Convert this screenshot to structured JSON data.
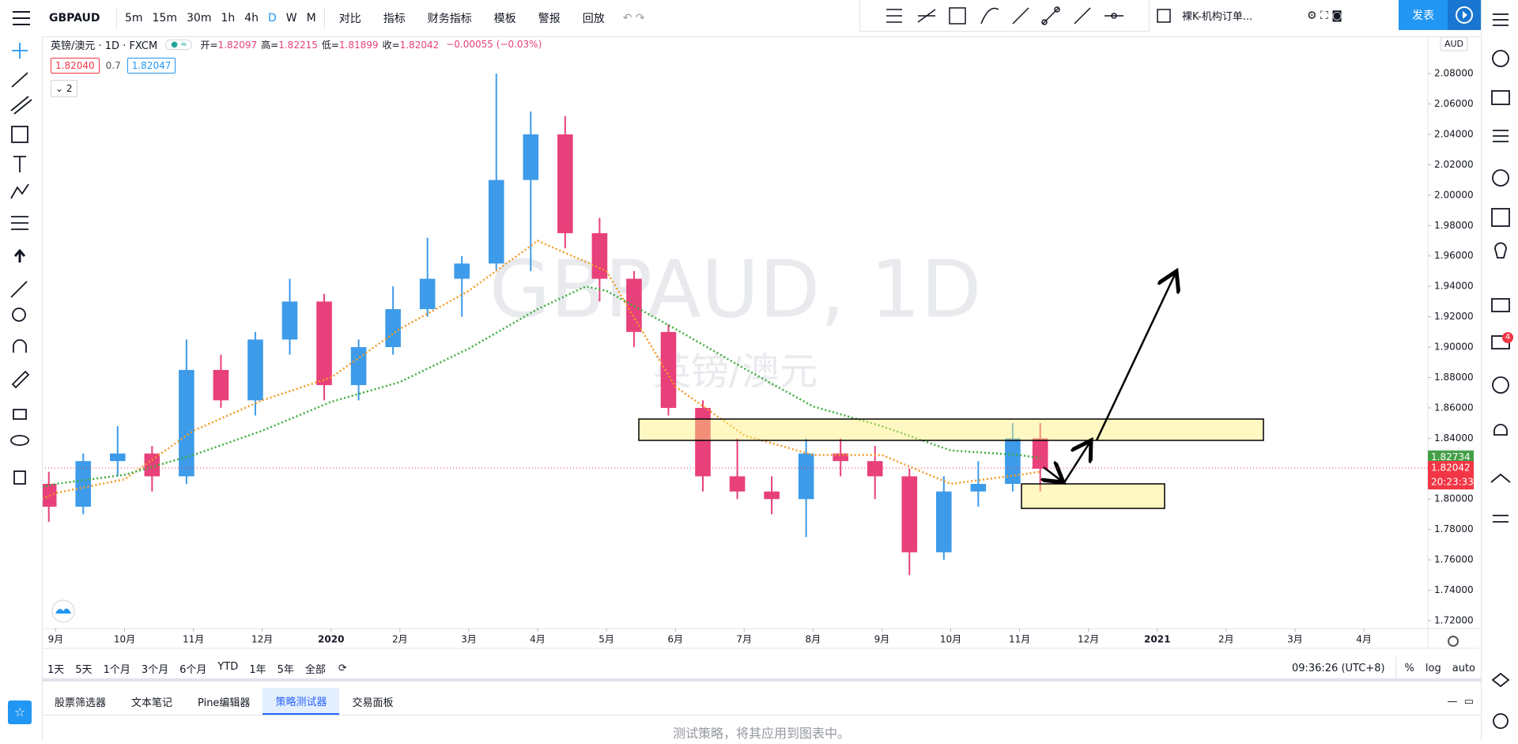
{
  "toolbar": {
    "symbol": "GBPAUD",
    "intervals": [
      "5m",
      "15m",
      "30m",
      "1h",
      "4h",
      "D",
      "W",
      "M"
    ],
    "active_interval": 5,
    "buttons": [
      "对比",
      "指标",
      "财务指标",
      "模板",
      "警报",
      "回放"
    ],
    "layout_name": "裸K-机构订单...",
    "publish": "发表"
  },
  "legend": {
    "title": "英镑/澳元 · 1D · FXCM",
    "ohlc": [
      [
        "开=",
        "1.82097"
      ],
      [
        "高=",
        "1.82215"
      ],
      [
        "低=",
        "1.81899"
      ],
      [
        "收=",
        "1.82042"
      ]
    ],
    "change": "−0.00055 (−0.03%)",
    "bid": "1.82040",
    "spread": "0.7",
    "ask": "1.82047",
    "collapsed_count": "2"
  },
  "watermark": {
    "symbol": "GBPAUD, 1D",
    "name": "英镑/澳元"
  },
  "chart_data": {
    "type": "candlestick",
    "x": [
      -0.1,
      0.4,
      0.9,
      1.4,
      1.9,
      2.4,
      2.9,
      3.4,
      3.9,
      4.4,
      4.9,
      5.4,
      5.9,
      6.4,
      6.9,
      7.4,
      7.9,
      8.4,
      8.9,
      9.4,
      9.9,
      10.4,
      10.9,
      11.4,
      11.9,
      12.4,
      12.9,
      13.4,
      13.9,
      14.3
    ],
    "open": [
      1.81,
      1.795,
      1.825,
      1.83,
      1.815,
      1.885,
      1.865,
      1.905,
      1.93,
      1.875,
      1.9,
      1.925,
      1.945,
      1.955,
      2.01,
      2.04,
      1.975,
      1.945,
      1.91,
      1.86,
      1.815,
      1.805,
      1.8,
      1.83,
      1.825,
      1.815,
      1.765,
      1.805,
      1.81,
      1.84
    ],
    "high": [
      1.818,
      1.83,
      1.848,
      1.835,
      1.905,
      1.895,
      1.91,
      1.945,
      1.935,
      1.905,
      1.94,
      1.972,
      1.96,
      2.08,
      2.055,
      2.052,
      1.985,
      1.95,
      1.915,
      1.865,
      1.84,
      1.815,
      1.84,
      1.84,
      1.835,
      1.82,
      1.815,
      1.825,
      1.85,
      1.85
    ],
    "low": [
      1.785,
      1.79,
      1.815,
      1.805,
      1.81,
      1.86,
      1.855,
      1.895,
      1.865,
      1.865,
      1.895,
      1.92,
      1.92,
      1.95,
      1.95,
      1.965,
      1.93,
      1.9,
      1.855,
      1.805,
      1.8,
      1.79,
      1.775,
      1.815,
      1.8,
      1.75,
      1.76,
      1.795,
      1.805,
      1.805
    ],
    "close": [
      1.795,
      1.825,
      1.83,
      1.815,
      1.885,
      1.865,
      1.905,
      1.93,
      1.875,
      1.9,
      1.925,
      1.945,
      1.955,
      2.01,
      2.04,
      1.975,
      1.945,
      1.91,
      1.86,
      1.815,
      1.805,
      1.8,
      1.83,
      1.825,
      1.815,
      1.765,
      1.805,
      1.81,
      1.84,
      1.82
    ],
    "up_color": "#3d9be9",
    "down_color": "#e8407a",
    "series": [
      {
        "color": "#f59a23",
        "x": [
          -0.2,
          0,
          1,
          2,
          3,
          4,
          5,
          6,
          7,
          8,
          9,
          10,
          11,
          12,
          13,
          14,
          14.3
        ],
        "values": [
          1.8,
          1.804,
          1.813,
          1.845,
          1.865,
          1.88,
          1.912,
          1.937,
          1.97,
          1.95,
          1.874,
          1.842,
          1.829,
          1.829,
          1.81,
          1.816,
          1.818
        ]
      },
      {
        "color": "#3cae3c",
        "x": [
          -0.2,
          0,
          1,
          2,
          3,
          4,
          5,
          6,
          7,
          7.7,
          8,
          9,
          10,
          11,
          12,
          13,
          14,
          14.3
        ],
        "values": [
          1.808,
          1.81,
          1.816,
          1.829,
          1.845,
          1.864,
          1.877,
          1.899,
          1.925,
          1.94,
          1.937,
          1.912,
          1.886,
          1.861,
          1.848,
          1.832,
          1.829,
          1.827
        ]
      }
    ],
    "xlim": [
      -0.2,
      19.93
    ],
    "xticks": [
      {
        "value": 0,
        "label": "9月"
      },
      {
        "value": 1,
        "label": "10月"
      },
      {
        "value": 2,
        "label": "11月"
      },
      {
        "value": 3,
        "label": "12月"
      },
      {
        "value": 4,
        "label": "2020"
      },
      {
        "value": 5,
        "label": "2月"
      },
      {
        "value": 6,
        "label": "3月"
      },
      {
        "value": 7,
        "label": "4月"
      },
      {
        "value": 8,
        "label": "5月"
      },
      {
        "value": 9,
        "label": "6月"
      },
      {
        "value": 10,
        "label": "7月"
      },
      {
        "value": 11,
        "label": "8月"
      },
      {
        "value": 12,
        "label": "9月"
      },
      {
        "value": 13,
        "label": "10月"
      },
      {
        "value": 14,
        "label": "11月"
      },
      {
        "value": 15,
        "label": "12月"
      },
      {
        "value": 16,
        "label": "2021"
      },
      {
        "value": 17,
        "label": "2月"
      },
      {
        "value": 18,
        "label": "3月"
      },
      {
        "value": 19,
        "label": "4月"
      }
    ],
    "ylim": [
      1.7148,
      2.1045
    ],
    "yticks": [
      {
        "value": 1.72,
        "label": "1.72000"
      },
      {
        "value": 1.74,
        "label": "1.74000"
      },
      {
        "value": 1.76,
        "label": "1.76000"
      },
      {
        "value": 1.78,
        "label": "1.78000"
      },
      {
        "value": 1.8,
        "label": "1.80000"
      },
      {
        "value": 1.82,
        "label": "1.82000"
      },
      {
        "value": 1.84,
        "label": "1.84000"
      },
      {
        "value": 1.86,
        "label": "1.86000"
      },
      {
        "value": 1.88,
        "label": "1.88000"
      },
      {
        "value": 1.9,
        "label": "1.90000"
      },
      {
        "value": 1.92,
        "label": "1.92000"
      },
      {
        "value": 1.94,
        "label": "1.94000"
      },
      {
        "value": 1.96,
        "label": "1.96000"
      },
      {
        "value": 1.98,
        "label": "1.98000"
      },
      {
        "value": 2.0,
        "label": "2.00000"
      },
      {
        "value": 2.02,
        "label": "2.02000"
      },
      {
        "value": 2.04,
        "label": "2.04000"
      },
      {
        "value": 2.06,
        "label": "2.06000"
      },
      {
        "value": 2.08,
        "label": "2.08000"
      }
    ],
    "grid": false,
    "currency": "AUD",
    "price_tags": [
      {
        "value": 1.82734,
        "color": "#43a047"
      },
      {
        "value": 1.82042,
        "color": "#f23645"
      }
    ],
    "countdown": "20:23:33"
  },
  "range_bar": {
    "ranges": [
      "1天",
      "5天",
      "1个月",
      "3个月",
      "6个月",
      "YTD",
      "1年",
      "5年",
      "全部"
    ],
    "clock": "09:36:26 (UTC+8)",
    "scale_options": [
      "%",
      "log",
      "auto"
    ]
  },
  "bottom_panel": {
    "tabs": [
      "股票筛选器",
      "文本笔记",
      "Pine编辑器",
      "策略测试器",
      "交易面板"
    ],
    "active_tab": 3,
    "message": "测试策略，将其应用到图表中。"
  },
  "sidebar": {
    "badge": "4"
  }
}
